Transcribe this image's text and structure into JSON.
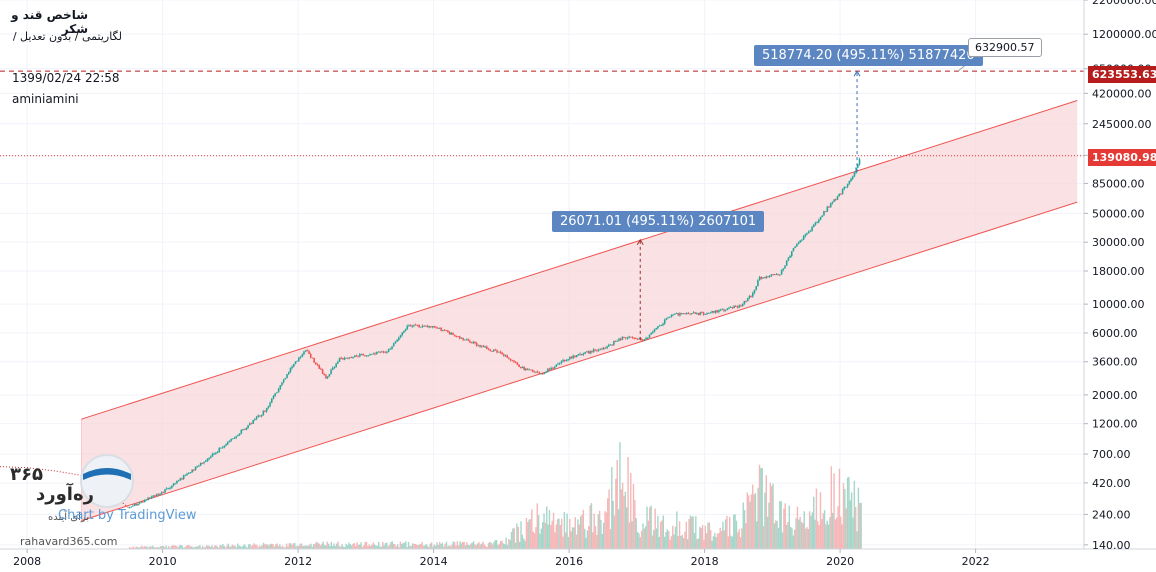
{
  "header": {
    "title": "شاخص قند و شکر",
    "subtitle": "لگاریتمی  /  بدون تعدیل  /",
    "timestamp": "1399/02/24 22:58",
    "author": "aminiamini"
  },
  "annotations": {
    "upper_callout": "518774.20 (495.11%) 51877420",
    "lower_callout": "26071.01 (495.11%) 2607101",
    "target_bubble": "632900.57",
    "target_tag": "623553.63",
    "current_tag": "139080.98"
  },
  "watermark": {
    "brand_fa": "ره‌آورد",
    "brand_num": "۳۶۵",
    "brand_tagline": "برای آینده",
    "chart_by": "Chart by TradingView",
    "site": "rahavard365.com"
  },
  "colors": {
    "up": "#26a69a",
    "down": "#ef5350",
    "channel": "#ef5350",
    "channel_fill": "#f8d7da",
    "callout": "#5b86c2",
    "tag_red": "#e53935",
    "tag_darkred": "#b71c1c"
  },
  "chart_data": {
    "type": "candlestick",
    "scale": "log",
    "ylim": [
      130,
      2200000
    ],
    "xlim": [
      2007.6,
      2023.6
    ],
    "x_ticks": [
      "2008",
      "2010",
      "2012",
      "2014",
      "2016",
      "2018",
      "2020",
      "2022"
    ],
    "y_ticks": [
      "2200000.00",
      "1200000.00",
      "650000.00",
      "420000.00",
      "245000.00",
      "140000.00",
      "85000.00",
      "50000.00",
      "30000.00",
      "18000.00",
      "10000.00",
      "6000.00",
      "3600.00",
      "2000.00",
      "1200.00",
      "700.00",
      "420.00",
      "240.00",
      "140.00"
    ],
    "price_path": [
      [
        2009.5,
        270
      ],
      [
        2010.0,
        360
      ],
      [
        2010.5,
        560
      ],
      [
        2011.0,
        900
      ],
      [
        2011.5,
        1500
      ],
      [
        2011.9,
        3300
      ],
      [
        2012.1,
        4500
      ],
      [
        2012.4,
        2700
      ],
      [
        2012.6,
        3800
      ],
      [
        2013.0,
        4100
      ],
      [
        2013.3,
        4300
      ],
      [
        2013.6,
        6800
      ],
      [
        2014.0,
        6700
      ],
      [
        2014.5,
        5200
      ],
      [
        2015.0,
        4100
      ],
      [
        2015.3,
        3200
      ],
      [
        2015.6,
        2950
      ],
      [
        2016.0,
        3900
      ],
      [
        2016.5,
        4600
      ],
      [
        2016.8,
        5600
      ],
      [
        2017.1,
        5300
      ],
      [
        2017.5,
        8300
      ],
      [
        2018.0,
        8500
      ],
      [
        2018.5,
        9600
      ],
      [
        2018.7,
        12000
      ],
      [
        2018.8,
        16000
      ],
      [
        2019.1,
        17000
      ],
      [
        2019.3,
        27000
      ],
      [
        2019.6,
        40000
      ],
      [
        2019.8,
        55000
      ],
      [
        2020.0,
        72000
      ],
      [
        2020.2,
        102000
      ],
      [
        2020.3,
        139080.98
      ]
    ],
    "channel": {
      "upper": {
        "x": [
          2008.8,
          2023.5
        ],
        "y": [
          1300,
          370000
        ]
      },
      "lower": {
        "x": [
          2008.8,
          2023.5
        ],
        "y": [
          215,
          61000
        ]
      }
    },
    "horizontal_lines": [
      623553.63,
      139080.98
    ],
    "measures": [
      {
        "x": 2017.05,
        "from": 5300,
        "to": 31300
      },
      {
        "x": 2020.25,
        "from": 104000,
        "to": 622000
      }
    ],
    "volume_profile": [
      [
        2009.5,
        0.02
      ],
      [
        2010.5,
        0.03
      ],
      [
        2011.5,
        0.04
      ],
      [
        2012.5,
        0.05
      ],
      [
        2013.5,
        0.05
      ],
      [
        2014.5,
        0.05
      ],
      [
        2015.0,
        0.06
      ],
      [
        2015.5,
        0.3
      ],
      [
        2016.0,
        0.25
      ],
      [
        2016.5,
        0.35
      ],
      [
        2016.8,
        0.8
      ],
      [
        2017.0,
        0.3
      ],
      [
        2017.5,
        0.25
      ],
      [
        2018.0,
        0.2
      ],
      [
        2018.5,
        0.25
      ],
      [
        2018.8,
        0.55
      ],
      [
        2019.2,
        0.3
      ],
      [
        2019.5,
        0.35
      ],
      [
        2019.9,
        0.55
      ],
      [
        2020.3,
        0.45
      ]
    ]
  }
}
